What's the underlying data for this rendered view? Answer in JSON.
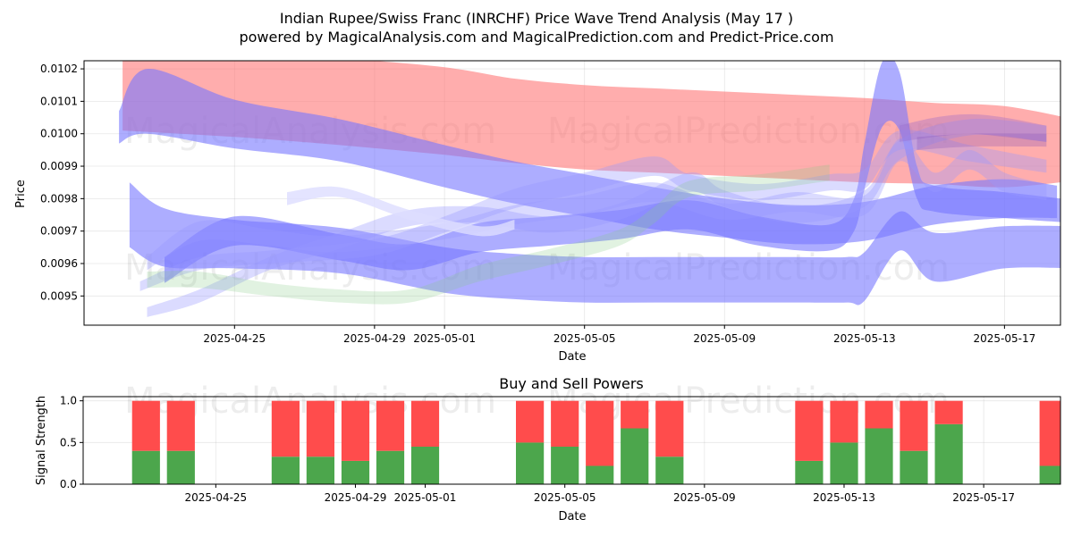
{
  "chart_data": [
    {
      "type": "area",
      "title": "Indian Rupee/Swiss Franc (INRCHF) Price Wave Trend Analysis (May 17 )",
      "subtitle": "powered by MagicalAnalysis.com and MagicalPrediction.com and Predict-Price.com",
      "xlabel": "Date",
      "ylabel": "Price",
      "watermarks": [
        "MagicalAnalysis.com",
        "MagicalPrediction.com"
      ],
      "xlim": [
        -2.3,
        25.6
      ],
      "ylim": [
        0.00941,
        0.010225
      ],
      "x_ticks": [
        {
          "v": 2,
          "label": "2025-04-25"
        },
        {
          "v": 6,
          "label": "2025-04-29"
        },
        {
          "v": 8,
          "label": "2025-05-01"
        },
        {
          "v": 12,
          "label": "2025-05-05"
        },
        {
          "v": 16,
          "label": "2025-05-09"
        },
        {
          "v": 20,
          "label": "2025-05-13"
        },
        {
          "v": 24,
          "label": "2025-05-17"
        }
      ],
      "y_ticks": [
        {
          "v": 0.0095,
          "label": "0.0095"
        },
        {
          "v": 0.0096,
          "label": "0.0096"
        },
        {
          "v": 0.0097,
          "label": "0.0097"
        },
        {
          "v": 0.0098,
          "label": "0.0098"
        },
        {
          "v": 0.0099,
          "label": "0.0099"
        },
        {
          "v": 0.01,
          "label": "0.0100"
        },
        {
          "v": 0.0101,
          "label": "0.0101"
        },
        {
          "v": 0.0102,
          "label": "0.0102"
        }
      ],
      "bands": [
        {
          "color": "#ff7777",
          "opacity": 0.6,
          "x": [
            -1.2,
            2,
            5,
            8,
            10,
            12,
            14,
            16,
            18,
            20,
            22,
            24,
            26
          ],
          "y": [
            0.01015,
            0.01013,
            0.0101,
            0.01007,
            0.01004,
            0.01002,
            0.01001,
            0.01,
            0.00999,
            0.00998,
            0.00997,
            0.00996,
            0.00995
          ],
          "h": [
            0.00028,
            0.00028,
            0.00027,
            0.00027,
            0.00026,
            0.00026,
            0.00026,
            0.00026,
            0.00026,
            0.00026,
            0.00025,
            0.00025,
            0.00019
          ]
        },
        {
          "color": "#7777ff",
          "opacity": 0.6,
          "x": [
            -1.3,
            -0.5,
            2,
            5,
            8,
            10,
            12,
            14,
            16,
            18,
            20,
            22,
            24,
            25.5
          ],
          "y": [
            0.01002,
            0.0101,
            0.01003,
            0.00998,
            0.0099,
            0.00985,
            0.00981,
            0.00977,
            0.00974,
            0.00972,
            0.00973,
            0.00978,
            0.0098,
            0.00979
          ],
          "h": [
            0.0001,
            0.0002,
            0.00015,
            0.00013,
            0.00013,
            0.00013,
            0.00013,
            0.00013,
            0.00012,
            0.00012,
            0.00012,
            0.00012,
            0.00012,
            0.0001
          ]
        },
        {
          "color": "#7777ff",
          "opacity": 0.6,
          "x": [
            -1.0,
            0,
            2,
            5,
            8,
            10,
            12,
            14,
            16,
            18,
            19.5,
            20,
            21,
            22,
            24,
            26
          ],
          "y": [
            0.00975,
            0.00968,
            0.00966,
            0.00964,
            0.00958,
            0.00956,
            0.00955,
            0.00955,
            0.00955,
            0.00955,
            0.00955,
            0.00956,
            0.0097,
            0.00962,
            0.00965,
            0.00965
          ],
          "h": [
            0.0002,
            0.00018,
            0.00015,
            0.00014,
            0.00014,
            0.00014,
            0.00014,
            0.00014,
            0.00014,
            0.00014,
            0.00014,
            0.00015,
            0.00012,
            0.00015,
            0.00013,
            0.00013
          ]
        },
        {
          "color": "#7777ff",
          "opacity": 0.6,
          "x": [
            0,
            2,
            5,
            7,
            9,
            11,
            13,
            15,
            17,
            19,
            19.7,
            20,
            20.5,
            21,
            21.5,
            22,
            24,
            26
          ],
          "y": [
            0.00958,
            0.0097,
            0.00965,
            0.00962,
            0.00968,
            0.0097,
            0.00972,
            0.00975,
            0.0097,
            0.00968,
            0.00975,
            0.0099,
            0.01012,
            0.0101,
            0.00985,
            0.0098,
            0.00978,
            0.00976
          ],
          "h": [
            8e-05,
            9e-05,
            8e-05,
            8e-05,
            9e-05,
            9e-05,
            9e-05,
            9e-05,
            9e-05,
            8e-05,
            0.0001,
            0.00014,
            0.0002,
            0.00018,
            0.0001,
            8e-05,
            8e-05,
            7e-05
          ]
        },
        {
          "color": "#9999ff",
          "opacity": 0.35,
          "x": [
            -0.5,
            1,
            3,
            5,
            8,
            10,
            12,
            14,
            16,
            18,
            20,
            21,
            22,
            23,
            24,
            25.2
          ],
          "y": [
            0.0096,
            0.0097,
            0.00968,
            0.00966,
            0.0097,
            0.00975,
            0.00978,
            0.00982,
            0.00976,
            0.00979,
            0.00978,
            0.00995,
            0.00985,
            0.00992,
            0.00985,
            0.00982
          ],
          "h": [
            4e-05,
            6e-05,
            5e-05,
            5e-05,
            5e-05,
            6e-05,
            6e-05,
            6e-05,
            5e-05,
            6e-05,
            6e-05,
            7e-05,
            6e-05,
            6e-05,
            6e-05,
            5e-05
          ]
        },
        {
          "color": "#9999ff",
          "opacity": 0.35,
          "x": [
            -0.7,
            1,
            3,
            6,
            8,
            10,
            12,
            14,
            15,
            17,
            19,
            20,
            21,
            23,
            25.2
          ],
          "y": [
            0.00953,
            0.0096,
            0.00962,
            0.00965,
            0.00972,
            0.0098,
            0.00985,
            0.0099,
            0.00985,
            0.00982,
            0.00985,
            0.00986,
            0.00998,
            0.00994,
            0.0099
          ],
          "h": [
            3e-05,
            4e-05,
            4e-05,
            5e-05,
            5e-05,
            6e-05,
            6e-05,
            6e-05,
            5e-05,
            5e-05,
            5e-05,
            6e-05,
            6e-05,
            5e-05,
            4e-05
          ]
        },
        {
          "color": "#9999ff",
          "opacity": 0.35,
          "x": [
            -0.5,
            1,
            3,
            5,
            7,
            9,
            11,
            13,
            15,
            16,
            18,
            20,
            21,
            23,
            25.2
          ],
          "y": [
            0.00945,
            0.0095,
            0.0096,
            0.00967,
            0.00974,
            0.00975,
            0.00972,
            0.00976,
            0.00985,
            0.0098,
            0.00975,
            0.0098,
            0.00995,
            0.01002,
            0.01
          ],
          "h": [
            3e-05,
            4e-05,
            4e-05,
            5e-05,
            5e-05,
            5e-05,
            5e-05,
            5e-05,
            6e-05,
            5e-05,
            5e-05,
            5e-05,
            6e-05,
            5e-05,
            5e-05
          ]
        },
        {
          "color": "#88cc88",
          "opacity": 0.25,
          "x": [
            -0.5,
            1,
            3,
            5,
            7,
            9,
            11,
            13,
            14,
            15,
            17,
            19
          ],
          "y": [
            0.00955,
            0.00955,
            0.00952,
            0.0095,
            0.0095,
            0.00957,
            0.00962,
            0.00968,
            0.00975,
            0.00983,
            0.00985,
            0.00988
          ],
          "h": [
            5e-05,
            5e-05,
            4e-05,
            4e-05,
            4e-05,
            5e-05,
            5e-05,
            5e-05,
            5e-05,
            5e-05,
            5e-05,
            5e-05
          ]
        },
        {
          "color": "#ddddff",
          "opacity": 0.8,
          "x": [
            3.5,
            5,
            7,
            9,
            10
          ],
          "y": [
            0.0098,
            0.00982,
            0.00975,
            0.0097,
            0.00972
          ],
          "h": [
            4e-05,
            3e-05,
            3e-05,
            3e-05,
            3e-05
          ]
        },
        {
          "color": "#9966cc",
          "opacity": 0.35,
          "x": [
            21,
            22,
            23,
            24,
            25.2
          ],
          "y": [
            0.01,
            0.01002,
            0.01003,
            0.01002,
            0.01
          ],
          "h": [
            5e-05,
            6e-05,
            6e-05,
            6e-05,
            5e-05
          ]
        },
        {
          "color": "#8855bb",
          "opacity": 0.3,
          "x": [
            21.5,
            23,
            25.2
          ],
          "y": [
            0.00997,
            0.00998,
            0.00998
          ],
          "h": [
            4e-05,
            4e-05,
            4e-05
          ]
        }
      ]
    },
    {
      "type": "bar",
      "title": "Buy and Sell Powers",
      "xlabel": "Date",
      "ylabel": "Signal Strength",
      "xlim": [
        -1.8,
        26.2
      ],
      "ylim": [
        0,
        1.05
      ],
      "x_ticks": [
        {
          "v": 2,
          "label": "2025-04-25"
        },
        {
          "v": 6,
          "label": "2025-04-29"
        },
        {
          "v": 8,
          "label": "2025-05-01"
        },
        {
          "v": 12,
          "label": "2025-05-05"
        },
        {
          "v": 16,
          "label": "2025-05-09"
        },
        {
          "v": 20,
          "label": "2025-05-13"
        },
        {
          "v": 24,
          "label": "2025-05-17"
        }
      ],
      "y_ticks": [
        {
          "v": 0.0,
          "label": "0.0"
        },
        {
          "v": 0.5,
          "label": "0.5"
        },
        {
          "v": 1.0,
          "label": "1.0"
        }
      ],
      "colors": {
        "buy": "#4ca64c",
        "sell": "#ff4c4c"
      },
      "x": [
        0,
        1,
        4,
        5,
        6,
        7,
        8,
        11,
        12,
        13,
        14,
        15,
        19,
        20,
        21,
        22,
        23,
        26
      ],
      "buy": [
        0.4,
        0.4,
        0.33,
        0.33,
        0.28,
        0.4,
        0.45,
        0.5,
        0.45,
        0.22,
        0.67,
        0.33,
        0.28,
        0.5,
        0.67,
        0.4,
        0.72,
        0.22
      ],
      "sell": [
        0.6,
        0.6,
        0.67,
        0.67,
        0.72,
        0.6,
        0.55,
        0.5,
        0.55,
        0.78,
        0.33,
        0.67,
        0.72,
        0.5,
        0.33,
        0.6,
        0.28,
        0.78
      ]
    }
  ]
}
